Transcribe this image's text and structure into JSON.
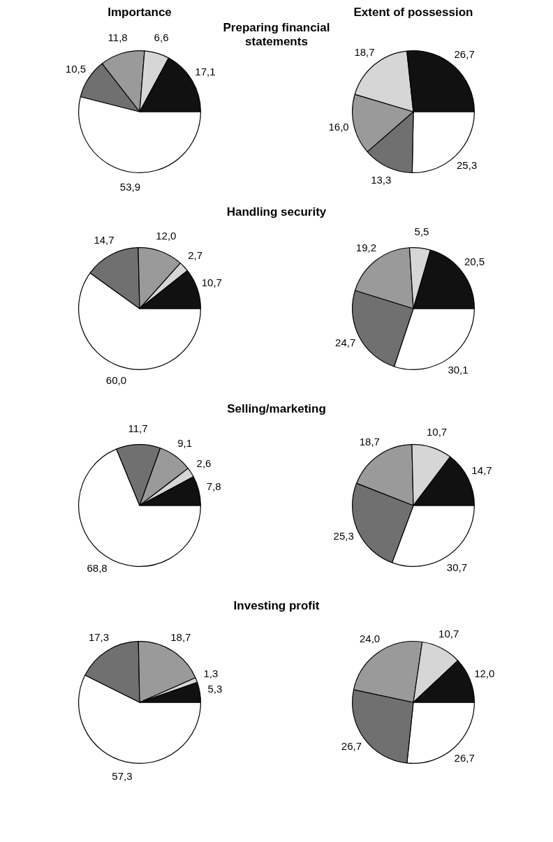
{
  "chart_data": [
    {
      "type": "pie",
      "title": "Importance",
      "subtitle": "Preparing financial statements",
      "categories": [
        null,
        null,
        null,
        null,
        null
      ],
      "values": [
        53.9,
        10.5,
        11.8,
        6.6,
        17.1
      ],
      "colors": [
        "#ffffff",
        "#707070",
        "#9a9a9a",
        "#d6d6d6",
        "#111111"
      ],
      "value_labels": [
        "53,9",
        "10,5",
        "11,8",
        "6,6",
        "17,1"
      ]
    },
    {
      "type": "pie",
      "title": "Extent of possession",
      "categories": [
        null,
        null,
        null,
        null,
        null
      ],
      "values": [
        25.3,
        13.3,
        16.0,
        18.7,
        26.7
      ],
      "colors": [
        "#ffffff",
        "#707070",
        "#9a9a9a",
        "#d6d6d6",
        "#111111"
      ],
      "value_labels": [
        "25,3",
        "13,3",
        "16,0",
        "18,7",
        "26,7"
      ]
    },
    {
      "type": "pie",
      "subtitle": "Handling security",
      "categories": [
        null,
        null,
        null,
        null,
        null
      ],
      "values": [
        60.0,
        14.7,
        12.0,
        2.7,
        10.7
      ],
      "colors": [
        "#ffffff",
        "#707070",
        "#9a9a9a",
        "#d6d6d6",
        "#111111"
      ],
      "value_labels": [
        "60,0",
        "14,7",
        "12,0",
        "2,7",
        "10,7"
      ]
    },
    {
      "type": "pie",
      "categories": [
        null,
        null,
        null,
        null,
        null
      ],
      "values": [
        30.1,
        24.7,
        19.2,
        5.5,
        20.5
      ],
      "colors": [
        "#ffffff",
        "#707070",
        "#9a9a9a",
        "#d6d6d6",
        "#111111"
      ],
      "value_labels": [
        "30,1",
        "24,7",
        "19,2",
        "5,5",
        "20,5"
      ]
    },
    {
      "type": "pie",
      "subtitle": "Selling/marketing",
      "categories": [
        null,
        null,
        null,
        null,
        null
      ],
      "values": [
        68.8,
        11.7,
        9.1,
        2.6,
        7.8
      ],
      "colors": [
        "#ffffff",
        "#707070",
        "#9a9a9a",
        "#d6d6d6",
        "#111111"
      ],
      "value_labels": [
        "68,8",
        "11,7",
        "9,1",
        "2,6",
        "7,8"
      ]
    },
    {
      "type": "pie",
      "categories": [
        null,
        null,
        null,
        null,
        null
      ],
      "values": [
        30.7,
        25.3,
        18.7,
        10.7,
        14.7
      ],
      "colors": [
        "#ffffff",
        "#707070",
        "#9a9a9a",
        "#d6d6d6",
        "#111111"
      ],
      "value_labels": [
        "30,7",
        "25,3",
        "18,7",
        "10,7",
        "14,7"
      ]
    },
    {
      "type": "pie",
      "subtitle": "Investing profit",
      "categories": [
        null,
        null,
        null,
        null,
        null
      ],
      "values": [
        57.3,
        17.3,
        18.7,
        1.3,
        5.3
      ],
      "colors": [
        "#ffffff",
        "#707070",
        "#9a9a9a",
        "#d6d6d6",
        "#111111"
      ],
      "value_labels": [
        "57,3",
        "17,3",
        "18,7",
        "1,3",
        "5,3"
      ]
    },
    {
      "type": "pie",
      "categories": [
        null,
        null,
        null,
        null,
        null
      ],
      "values": [
        26.7,
        26.7,
        24.0,
        10.7,
        12.0
      ],
      "colors": [
        "#ffffff",
        "#707070",
        "#9a9a9a",
        "#d6d6d6",
        "#111111"
      ],
      "value_labels": [
        "26,7",
        "26,7",
        "24,0",
        "10,7",
        "12,0"
      ]
    }
  ]
}
